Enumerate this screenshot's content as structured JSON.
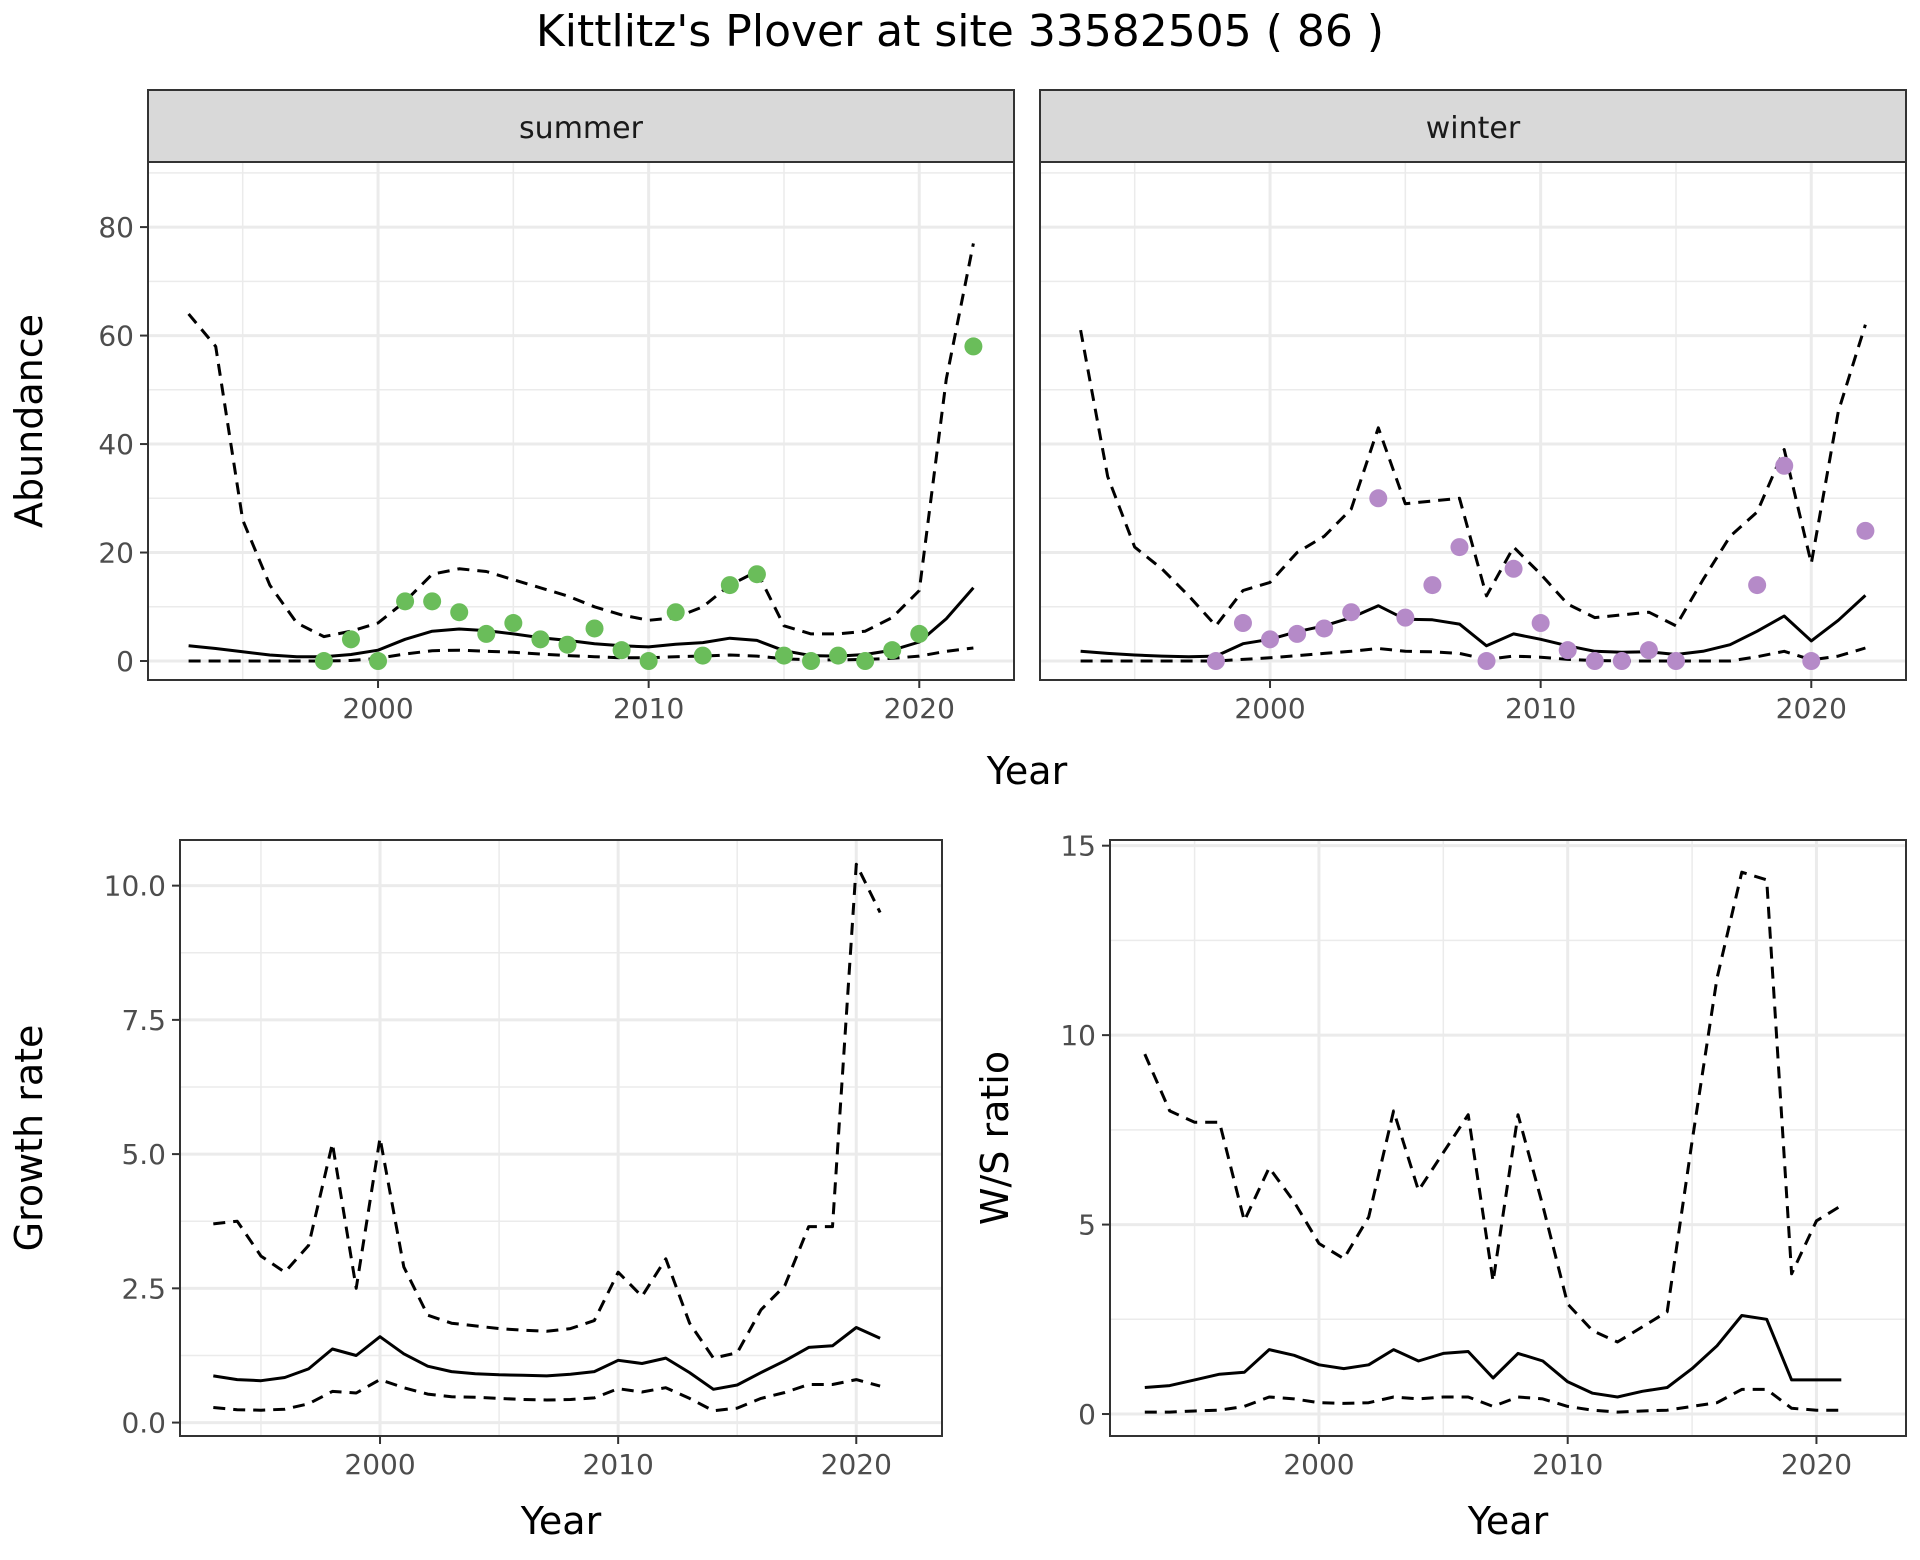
{
  "title": "Kittlitz's Plover at site 33582505 ( 86 )",
  "colors": {
    "summer_points": "#6abd5a",
    "winter_points": "#b58ac8",
    "line": "#000000",
    "grid": "#ebebeb",
    "strip_fill": "#d9d9d9"
  },
  "chart_data": [
    {
      "type": "line",
      "panel": "summer",
      "strip_label": "summer",
      "xlabel": "Year",
      "ylabel": "Abundance",
      "xlim": [
        1991.5,
        2023.5
      ],
      "ylim": [
        -3.5,
        92
      ],
      "x_ticks": [
        2000,
        2010,
        2020
      ],
      "y_ticks": [
        0,
        20,
        40,
        60,
        80
      ],
      "grid": true,
      "series": [
        {
          "role": "mean",
          "style": "solid",
          "x": [
            1993,
            1994,
            1995,
            1996,
            1997,
            1998,
            1999,
            2000,
            2001,
            2002,
            2003,
            2004,
            2005,
            2006,
            2007,
            2008,
            2009,
            2010,
            2011,
            2012,
            2013,
            2014,
            2015,
            2016,
            2017,
            2018,
            2019,
            2020,
            2021,
            2022
          ],
          "y": [
            2.8,
            2.3,
            1.7,
            1.1,
            0.8,
            0.8,
            1.2,
            2.0,
            4.0,
            5.5,
            5.9,
            5.6,
            5.0,
            4.3,
            3.8,
            3.2,
            2.8,
            2.6,
            3.1,
            3.4,
            4.2,
            3.8,
            1.9,
            1.0,
            0.9,
            1.2,
            2.0,
            3.5,
            7.8,
            13.5
          ]
        },
        {
          "role": "upper",
          "style": "dashed",
          "x": [
            1993,
            1994,
            1995,
            1996,
            1997,
            1998,
            1999,
            2000,
            2001,
            2002,
            2003,
            2004,
            2005,
            2006,
            2007,
            2008,
            2009,
            2010,
            2011,
            2012,
            2013,
            2014,
            2015,
            2016,
            2017,
            2018,
            2019,
            2020,
            2021,
            2022
          ],
          "y": [
            64,
            58,
            26,
            14,
            7,
            4.5,
            5.5,
            7,
            11,
            16,
            17,
            16.5,
            15,
            13.5,
            12,
            10,
            8.5,
            7.5,
            8,
            10,
            14,
            16.5,
            6.5,
            5,
            5,
            5.5,
            8,
            13,
            52,
            77
          ]
        },
        {
          "role": "lower",
          "style": "dashed",
          "x": [
            1993,
            1994,
            1995,
            1996,
            1997,
            1998,
            1999,
            2000,
            2001,
            2002,
            2003,
            2004,
            2005,
            2006,
            2007,
            2008,
            2009,
            2010,
            2011,
            2012,
            2013,
            2014,
            2015,
            2016,
            2017,
            2018,
            2019,
            2020,
            2021,
            2022
          ],
          "y": [
            0,
            0,
            0,
            0,
            0,
            0,
            0.1,
            0.5,
            1.3,
            1.9,
            2.0,
            1.8,
            1.6,
            1.3,
            1.0,
            0.8,
            0.6,
            0.6,
            0.8,
            0.9,
            1.1,
            0.9,
            0.4,
            0.2,
            0.2,
            0.3,
            0.5,
            0.9,
            1.8,
            2.4
          ]
        },
        {
          "role": "observed",
          "style": "points",
          "x": [
            1998,
            1999,
            2000,
            2001,
            2002,
            2003,
            2004,
            2005,
            2006,
            2007,
            2008,
            2009,
            2010,
            2011,
            2012,
            2013,
            2014,
            2015,
            2016,
            2017,
            2018,
            2019,
            2020,
            2022
          ],
          "y": [
            0,
            4,
            0,
            11,
            11,
            9,
            5,
            7,
            4,
            3,
            6,
            2,
            0,
            9,
            1,
            14,
            16,
            1,
            0,
            1,
            0,
            2,
            5,
            58
          ]
        }
      ]
    },
    {
      "type": "line",
      "panel": "winter",
      "strip_label": "winter",
      "xlabel": "Year",
      "ylabel": "Abundance",
      "xlim": [
        1991.5,
        2023.5
      ],
      "ylim": [
        -3.5,
        92
      ],
      "x_ticks": [
        2000,
        2010,
        2020
      ],
      "y_ticks": [
        0,
        20,
        40,
        60,
        80
      ],
      "grid": true,
      "series": [
        {
          "role": "mean",
          "style": "solid",
          "x": [
            1993,
            1994,
            1995,
            1996,
            1997,
            1998,
            1999,
            2000,
            2001,
            2002,
            2003,
            2004,
            2005,
            2006,
            2007,
            2008,
            2009,
            2010,
            2011,
            2012,
            2013,
            2014,
            2015,
            2016,
            2017,
            2018,
            2019,
            2020,
            2021,
            2022
          ],
          "y": [
            1.8,
            1.4,
            1.1,
            0.9,
            0.8,
            0.9,
            3.2,
            4.0,
            5.4,
            6.5,
            8.0,
            10.2,
            7.7,
            7.6,
            6.8,
            2.8,
            5.0,
            4.0,
            2.8,
            1.8,
            1.6,
            1.7,
            1.2,
            1.8,
            3.0,
            5.5,
            8.3,
            3.7,
            7.5,
            12.1
          ]
        },
        {
          "role": "upper",
          "style": "dashed",
          "x": [
            1993,
            1994,
            1995,
            1996,
            1997,
            1998,
            1999,
            2000,
            2001,
            2002,
            2003,
            2004,
            2005,
            2006,
            2007,
            2008,
            2009,
            2010,
            2011,
            2012,
            2013,
            2014,
            2015,
            2016,
            2017,
            2018,
            2019,
            2020,
            2021,
            2022
          ],
          "y": [
            61,
            34,
            21,
            17,
            12,
            6.5,
            13,
            14.5,
            20,
            23,
            28,
            43,
            29,
            29.5,
            30,
            12,
            21,
            16,
            10.5,
            8,
            8.5,
            9,
            6.5,
            15,
            23,
            27.5,
            39,
            18,
            46,
            62
          ]
        },
        {
          "role": "lower",
          "style": "dashed",
          "x": [
            1993,
            1994,
            1995,
            1996,
            1997,
            1998,
            1999,
            2000,
            2001,
            2002,
            2003,
            2004,
            2005,
            2006,
            2007,
            2008,
            2009,
            2010,
            2011,
            2012,
            2013,
            2014,
            2015,
            2016,
            2017,
            2018,
            2019,
            2020,
            2021,
            2022
          ],
          "y": [
            0,
            0,
            0,
            0,
            0,
            0,
            0.3,
            0.6,
            1.0,
            1.4,
            1.8,
            2.3,
            1.8,
            1.7,
            1.4,
            0.3,
            0.9,
            0.7,
            0.3,
            0.1,
            0,
            0,
            0,
            0,
            0,
            0.8,
            1.8,
            0.2,
            0.9,
            2.4
          ]
        },
        {
          "role": "observed",
          "style": "points",
          "x": [
            1998,
            1999,
            2000,
            2001,
            2002,
            2003,
            2004,
            2005,
            2006,
            2007,
            2008,
            2009,
            2010,
            2011,
            2012,
            2013,
            2014,
            2015,
            2018,
            2019,
            2020,
            2022
          ],
          "y": [
            0,
            7,
            4,
            5,
            6,
            9,
            30,
            8,
            14,
            21,
            0,
            17,
            7,
            2,
            0,
            0,
            2,
            0,
            14,
            36,
            0,
            24
          ]
        }
      ]
    },
    {
      "type": "line",
      "panel": "growth",
      "xlabel": "Year",
      "ylabel": "Growth rate",
      "xlim": [
        1991.6,
        2023.6
      ],
      "ylim": [
        -0.25,
        10.85
      ],
      "x_ticks": [
        2000,
        2010,
        2020
      ],
      "y_ticks": [
        0.0,
        2.5,
        5.0,
        7.5,
        10.0
      ],
      "y_tick_labels": [
        "0.0",
        "2.5",
        "5.0",
        "7.5",
        "10.0"
      ],
      "grid": true,
      "series": [
        {
          "role": "mean",
          "style": "solid",
          "x": [
            1993,
            1994,
            1995,
            1996,
            1997,
            1998,
            1999,
            2000,
            2001,
            2002,
            2003,
            2004,
            2005,
            2006,
            2007,
            2008,
            2009,
            2010,
            2011,
            2012,
            2013,
            2014,
            2015,
            2016,
            2017,
            2018,
            2019,
            2020,
            2021
          ],
          "y": [
            0.87,
            0.8,
            0.78,
            0.84,
            1.0,
            1.37,
            1.25,
            1.6,
            1.28,
            1.05,
            0.95,
            0.91,
            0.89,
            0.88,
            0.87,
            0.9,
            0.95,
            1.16,
            1.1,
            1.2,
            0.93,
            0.62,
            0.7,
            0.93,
            1.15,
            1.4,
            1.43,
            1.77,
            1.57
          ]
        },
        {
          "role": "upper",
          "style": "dashed",
          "x": [
            1993,
            1994,
            1995,
            1996,
            1997,
            1998,
            1999,
            2000,
            2001,
            2002,
            2003,
            2004,
            2005,
            2006,
            2007,
            2008,
            2009,
            2010,
            2011,
            2012,
            2013,
            2014,
            2015,
            2016,
            2017,
            2018,
            2019,
            2020,
            2021
          ],
          "y": [
            3.7,
            3.75,
            3.1,
            2.8,
            3.3,
            5.2,
            2.5,
            5.3,
            2.9,
            2.0,
            1.85,
            1.8,
            1.75,
            1.72,
            1.7,
            1.75,
            1.9,
            2.8,
            2.35,
            3.05,
            1.85,
            1.2,
            1.3,
            2.1,
            2.55,
            3.65,
            3.65,
            10.4,
            9.5
          ]
        },
        {
          "role": "lower",
          "style": "dashed",
          "x": [
            1993,
            1994,
            1995,
            1996,
            1997,
            1998,
            1999,
            2000,
            2001,
            2002,
            2003,
            2004,
            2005,
            2006,
            2007,
            2008,
            2009,
            2010,
            2011,
            2012,
            2013,
            2014,
            2015,
            2016,
            2017,
            2018,
            2019,
            2020,
            2021
          ],
          "y": [
            0.28,
            0.24,
            0.23,
            0.25,
            0.35,
            0.58,
            0.55,
            0.8,
            0.65,
            0.53,
            0.48,
            0.47,
            0.45,
            0.43,
            0.42,
            0.43,
            0.46,
            0.63,
            0.57,
            0.65,
            0.45,
            0.22,
            0.27,
            0.45,
            0.56,
            0.71,
            0.71,
            0.8,
            0.68
          ]
        }
      ]
    },
    {
      "type": "line",
      "panel": "ws_ratio",
      "xlabel": "Year",
      "ylabel": "W/S ratio",
      "xlim": [
        1991.6,
        2023.6
      ],
      "ylim": [
        -0.58,
        15.15
      ],
      "x_ticks": [
        2000,
        2010,
        2020
      ],
      "y_ticks": [
        0,
        5,
        10,
        15
      ],
      "grid": true,
      "series": [
        {
          "role": "mean",
          "style": "solid",
          "x": [
            1993,
            1994,
            1995,
            1996,
            1997,
            1998,
            1999,
            2000,
            2001,
            2002,
            2003,
            2004,
            2005,
            2006,
            2007,
            2008,
            2009,
            2010,
            2011,
            2012,
            2013,
            2014,
            2015,
            2016,
            2017,
            2018,
            2019,
            2020,
            2021
          ],
          "y": [
            0.7,
            0.75,
            0.9,
            1.05,
            1.1,
            1.7,
            1.55,
            1.3,
            1.2,
            1.3,
            1.7,
            1.4,
            1.6,
            1.65,
            0.95,
            1.6,
            1.4,
            0.85,
            0.55,
            0.45,
            0.6,
            0.7,
            1.2,
            1.8,
            2.6,
            2.5,
            0.9,
            0.9,
            0.9
          ]
        },
        {
          "role": "upper",
          "style": "dashed",
          "x": [
            1993,
            1994,
            1995,
            1996,
            1997,
            1998,
            1999,
            2000,
            2001,
            2002,
            2003,
            2004,
            2005,
            2006,
            2007,
            2008,
            2009,
            2010,
            2011,
            2012,
            2013,
            2014,
            2015,
            2016,
            2017,
            2018,
            2019,
            2020,
            2021
          ],
          "y": [
            9.5,
            8.0,
            7.7,
            7.7,
            5.1,
            6.5,
            5.6,
            4.5,
            4.1,
            5.2,
            8.0,
            5.9,
            6.9,
            7.9,
            3.5,
            7.9,
            5.5,
            2.9,
            2.2,
            1.9,
            2.3,
            2.7,
            7.2,
            11.5,
            14.3,
            14.1,
            3.7,
            5.1,
            5.5
          ]
        },
        {
          "role": "lower",
          "style": "dashed",
          "x": [
            1993,
            1994,
            1995,
            1996,
            1997,
            1998,
            1999,
            2000,
            2001,
            2002,
            2003,
            2004,
            2005,
            2006,
            2007,
            2008,
            2009,
            2010,
            2011,
            2012,
            2013,
            2014,
            2015,
            2016,
            2017,
            2018,
            2019,
            2020,
            2021
          ],
          "y": [
            0.05,
            0.05,
            0.08,
            0.1,
            0.2,
            0.45,
            0.4,
            0.3,
            0.28,
            0.3,
            0.45,
            0.4,
            0.45,
            0.45,
            0.2,
            0.45,
            0.4,
            0.2,
            0.1,
            0.05,
            0.08,
            0.1,
            0.2,
            0.3,
            0.65,
            0.65,
            0.15,
            0.1,
            0.1
          ]
        }
      ]
    }
  ]
}
